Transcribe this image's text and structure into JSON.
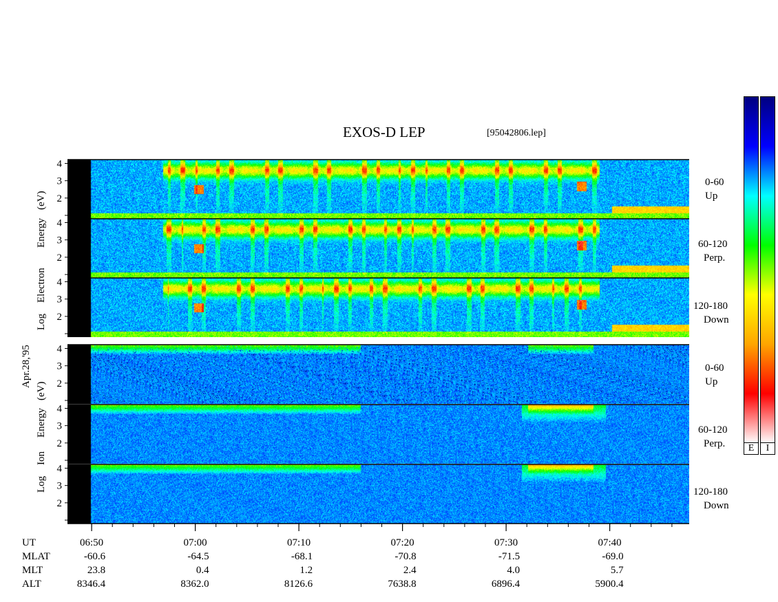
{
  "header": {
    "title": "EXOS-D LEP",
    "file": "[95042806.lep]"
  },
  "electron_label": {
    "rotated": [
      "Log",
      "Electron",
      "Energy",
      "(eV)"
    ]
  },
  "ion_label": {
    "rotated": [
      "Log",
      "Ion",
      "Energy",
      "(eV)"
    ]
  },
  "date_label": "Apr.28,'95",
  "panels": [
    {
      "id": "e-up",
      "species": "electron",
      "pitch": "0-60",
      "dir": "Up"
    },
    {
      "id": "e-perp",
      "species": "electron",
      "pitch": "60-120",
      "dir": "Perp."
    },
    {
      "id": "e-down",
      "species": "electron",
      "pitch": "120-180",
      "dir": "Down"
    },
    {
      "id": "i-up",
      "species": "ion",
      "pitch": "0-60",
      "dir": "Up"
    },
    {
      "id": "i-perp",
      "species": "ion",
      "pitch": "60-120",
      "dir": "Perp."
    },
    {
      "id": "i-down",
      "species": "ion",
      "pitch": "120-180",
      "dir": "Down"
    }
  ],
  "colorbars": [
    {
      "tag": "E"
    },
    {
      "tag": "I"
    }
  ],
  "chart_data": {
    "type": "heatmap",
    "title": "EXOS-D LEP",
    "x_axis": {
      "label": "UT",
      "range": [
        "06:48",
        "07:48"
      ],
      "major_ticks": [
        "06:50",
        "07:00",
        "07:10",
        "07:20",
        "07:30",
        "07:40"
      ],
      "minor_tick_interval_min": 2
    },
    "y_axis": {
      "label": "Log Energy (eV)",
      "range": [
        1,
        4.1
      ],
      "ticks": [
        "4",
        "3",
        "2"
      ]
    },
    "ion_y_ticks": [
      "4",
      "3",
      "2"
    ],
    "colormap": [
      "#ffffff",
      "#ff0000",
      "#ffa500",
      "#ffff00",
      "#00ff00",
      "#00ffff",
      "#0000ff",
      "#000080"
    ],
    "ephemeris": [
      {
        "name": "MLAT",
        "values": [
          "-60.6",
          "-64.5",
          "-68.1",
          "-70.8",
          "-71.5",
          "-69.0"
        ]
      },
      {
        "name": "MLT",
        "values": [
          "23.8",
          "0.4",
          "1.2",
          "2.4",
          "4.0",
          "5.7"
        ]
      },
      {
        "name": "ALT",
        "values": [
          "8346.4",
          "8362.0",
          "8126.6",
          "7638.8",
          "6896.4",
          "5900.4"
        ]
      }
    ]
  }
}
